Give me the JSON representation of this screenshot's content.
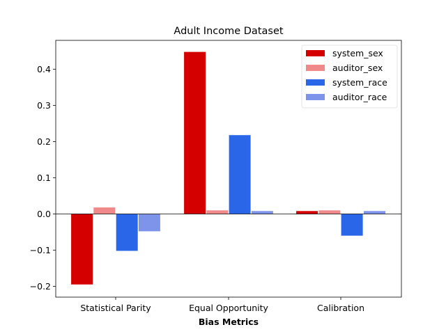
{
  "chart_data": {
    "type": "bar",
    "title": "Adult Income Dataset",
    "xlabel": "Bias Metrics",
    "ylabel": "",
    "categories": [
      "Statistical Parity",
      "Equal Opportunity",
      "Calibration"
    ],
    "ylim": [
      -0.23,
      0.48
    ],
    "yticks": [
      -0.2,
      -0.1,
      0.0,
      0.1,
      0.2,
      0.3,
      0.4
    ],
    "ytick_labels": [
      "−0.2",
      "−0.1",
      "0.0",
      "0.1",
      "0.2",
      "0.3",
      "0.4"
    ],
    "grid": false,
    "legend_position": "top-right",
    "series": [
      {
        "name": "system_sex",
        "values": [
          -0.195,
          0.448,
          0.008
        ],
        "color": "#d40000"
      },
      {
        "name": "auditor_sex",
        "values": [
          0.018,
          0.01,
          0.01
        ],
        "color": "#f08a8a"
      },
      {
        "name": "system_race",
        "values": [
          -0.102,
          0.218,
          -0.06
        ],
        "color": "#2a66e8"
      },
      {
        "name": "auditor_race",
        "values": [
          -0.048,
          0.008,
          0.008
        ],
        "color": "#7e94ea"
      }
    ]
  }
}
